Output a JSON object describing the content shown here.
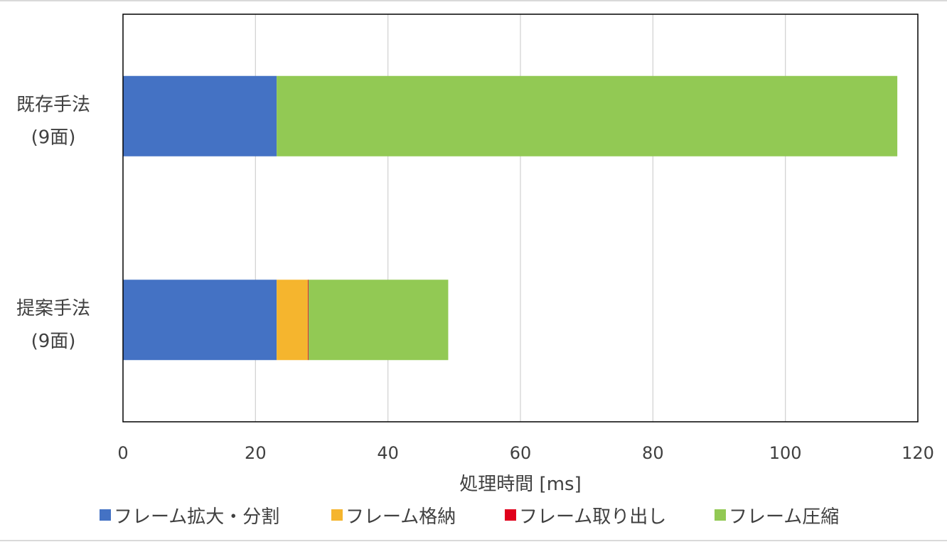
{
  "chart_data": {
    "type": "bar",
    "orientation": "horizontal",
    "stacked": true,
    "title": "",
    "xlabel": "処理時間 [ms]",
    "ylabel": "",
    "xlim": [
      0,
      120
    ],
    "xticks": [
      0,
      20,
      40,
      60,
      80,
      100,
      120
    ],
    "grid": true,
    "legend_position": "bottom",
    "categories": [
      {
        "line1": "既存手法",
        "line2": "(9面)"
      },
      {
        "line1": "提案手法",
        "line2": "(9面)"
      }
    ],
    "series": [
      {
        "name": "フレーム拡大・分割",
        "color": "#4472C4",
        "values": [
          23.2,
          23.2
        ]
      },
      {
        "name": "フレーム格納",
        "color": "#F5B52E",
        "values": [
          0,
          4.7
        ]
      },
      {
        "name": "フレーム取り出し",
        "color": "#E0001B",
        "values": [
          0,
          0.1
        ]
      },
      {
        "name": "フレーム圧縮",
        "color": "#92C954",
        "values": [
          93.7,
          21.1
        ]
      }
    ]
  }
}
